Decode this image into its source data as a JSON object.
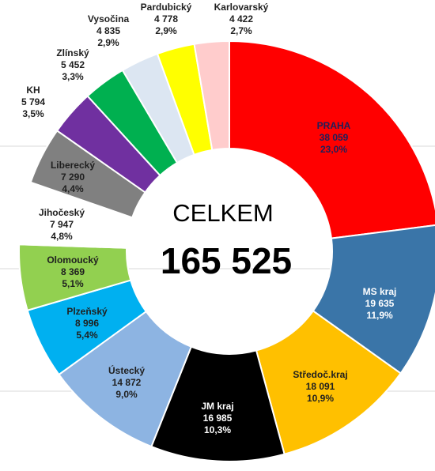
{
  "chart_data": {
    "type": "donut",
    "center_text": "CELKEM",
    "center_value": "165 525",
    "categories": [
      "PRAHA",
      "MS kraj",
      "Středoč.kraj",
      "JM kraj",
      "Ústecký",
      "Plzeňský",
      "Olomoucký",
      "Jihočeský",
      "Liberecký",
      "KH",
      "Zlínský",
      "Vysočina",
      "Pardubický",
      "Karlovarský"
    ],
    "values": [
      38059,
      19635,
      18091,
      16985,
      14872,
      8996,
      8369,
      7947,
      7290,
      5794,
      5452,
      4835,
      4778,
      4422
    ],
    "value_labels": [
      "38 059",
      "19 635",
      "18 091",
      "16 985",
      "14 872",
      "8 996",
      "8 369",
      "7 947",
      "7 290",
      "5 794",
      "5 452",
      "4 835",
      "4 778",
      "4 422"
    ],
    "percentages": [
      23.0,
      11.9,
      10.9,
      10.3,
      9.0,
      5.4,
      5.1,
      4.8,
      4.4,
      3.5,
      3.3,
      2.9,
      2.9,
      2.7
    ],
    "percentage_labels": [
      "23,0%",
      "11,9%",
      "10,9%",
      "10,3%",
      "9,0%",
      "5,4%",
      "5,1%",
      "4,8%",
      "4,4%",
      "3,5%",
      "3,3%",
      "2,9%",
      "2,9%",
      "2,7%"
    ],
    "colors": [
      "#ff0000",
      "#3a75a8",
      "#ffc000",
      "#000000",
      "#8db4e2",
      "#00b0f0",
      "#92d050",
      "#ffffff",
      "#808080",
      "#7030a0",
      "#00b050",
      "#dce6f2",
      "#ffff00",
      "#ffcccc"
    ]
  }
}
